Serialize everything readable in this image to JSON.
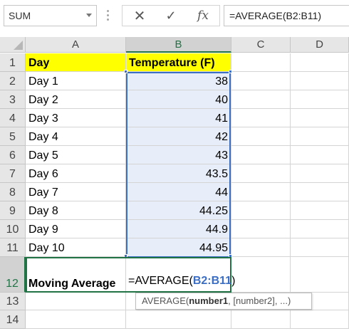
{
  "formula_bar": {
    "name_box": "SUM",
    "fx_label": "fx",
    "formula": "=AVERAGE(B2:B11)"
  },
  "columns": [
    "A",
    "B",
    "C",
    "D"
  ],
  "rows": [
    "1",
    "2",
    "3",
    "4",
    "5",
    "6",
    "7",
    "8",
    "9",
    "10",
    "11",
    "12",
    "13",
    "14"
  ],
  "sheet": {
    "header_a": "Day",
    "header_b": "Temperature (F)",
    "days": [
      "Day 1",
      "Day 2",
      "Day 3",
      "Day 4",
      "Day 5",
      "Day 6",
      "Day 7",
      "Day 8",
      "Day 9",
      "Day 10"
    ],
    "temps": [
      "38",
      "40",
      "41",
      "42",
      "43",
      "43.5",
      "44",
      "44.25",
      "44.9",
      "44.95"
    ],
    "moving_average_label": "Moving Average",
    "formula_prefix": "=AVERAGE(",
    "formula_ref": "B2:B11",
    "formula_suffix": ")"
  },
  "tooltip": {
    "func": "AVERAGE(",
    "arg1": "number1",
    "rest": ", [number2], ...)"
  },
  "colors": {
    "header_fill": "#ffff00",
    "range_fill": "#e8eef9",
    "range_border": "#3b6ec5",
    "active_green": "#217346"
  }
}
